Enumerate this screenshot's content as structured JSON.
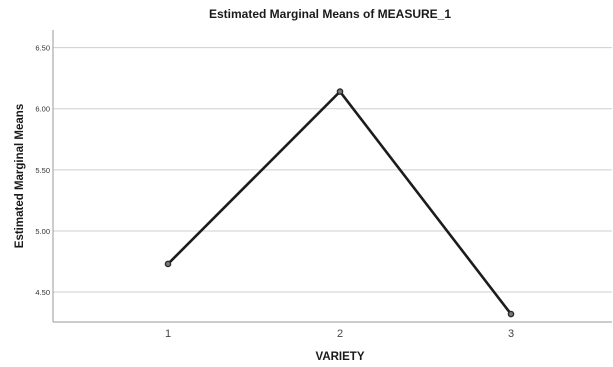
{
  "chart_data": {
    "type": "line",
    "title": "Estimated Marginal Means of MEASURE_1",
    "xlabel": "VARIETY",
    "ylabel": "Estimated Marginal Means",
    "categories": [
      "1",
      "2",
      "3"
    ],
    "series": [
      {
        "values": [
          4.73,
          6.14,
          4.32
        ]
      }
    ],
    "ylim": [
      4.3,
      6.55
    ],
    "y_ticks": [
      "4.50",
      "5.00",
      "5.50",
      "6.00",
      "6.50"
    ],
    "grid": "horizontal",
    "colors": {
      "line": "#1c1c1c",
      "marker_fill": "#7a7a7a"
    }
  }
}
